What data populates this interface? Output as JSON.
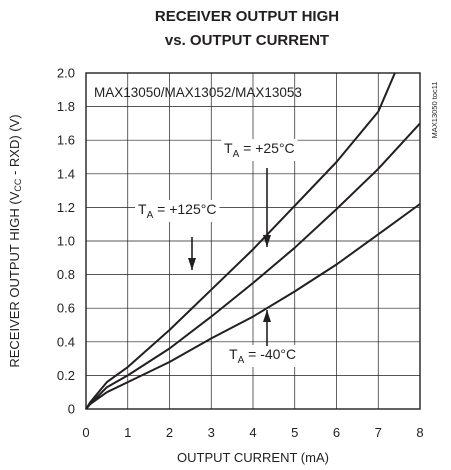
{
  "chart_data": {
    "type": "line",
    "title_line1": "RECEIVER OUTPUT HIGH",
    "title_line2": "vs. OUTPUT CURRENT",
    "xlabel": "OUTPUT CURRENT (mA)",
    "ylabel_pre": "RECEIVER OUTPUT HIGH (V",
    "ylabel_sub": "CC",
    "ylabel_post": " - RXD) (V)",
    "xlim": [
      0,
      8
    ],
    "ylim": [
      0,
      2.0
    ],
    "xticks": [
      "0",
      "1",
      "2",
      "3",
      "4",
      "5",
      "6",
      "7",
      "8"
    ],
    "yticks": [
      "0",
      "0.2",
      "0.4",
      "0.6",
      "0.8",
      "1.0",
      "1.2",
      "1.4",
      "1.6",
      "1.8",
      "2.0"
    ],
    "grid": true,
    "part_label": "MAX13050/MAX13052/MAX13053",
    "toc_label": "MAX13050 toc11",
    "series": [
      {
        "label_pre": "T",
        "label_sub": "A",
        "label_post": " = +125°C",
        "x": [
          0,
          0.1,
          0.5,
          1,
          2,
          3,
          4,
          5,
          6,
          7,
          7.4
        ],
        "y": [
          0,
          0.04,
          0.16,
          0.25,
          0.47,
          0.71,
          0.95,
          1.21,
          1.47,
          1.77,
          2.0
        ]
      },
      {
        "label_pre": "T",
        "label_sub": "A",
        "label_post": " = +25°C",
        "x": [
          0,
          0.1,
          0.5,
          1,
          2,
          3,
          4,
          5,
          6,
          7,
          8
        ],
        "y": [
          0,
          0.03,
          0.13,
          0.2,
          0.36,
          0.55,
          0.75,
          0.96,
          1.19,
          1.43,
          1.7
        ]
      },
      {
        "label_pre": "T",
        "label_sub": "A",
        "label_post": " = -40°C",
        "x": [
          0,
          0.1,
          0.5,
          1,
          2,
          3,
          4,
          5,
          6,
          7,
          8
        ],
        "y": [
          0,
          0.03,
          0.1,
          0.16,
          0.28,
          0.42,
          0.55,
          0.7,
          0.86,
          1.04,
          1.22
        ]
      }
    ]
  }
}
